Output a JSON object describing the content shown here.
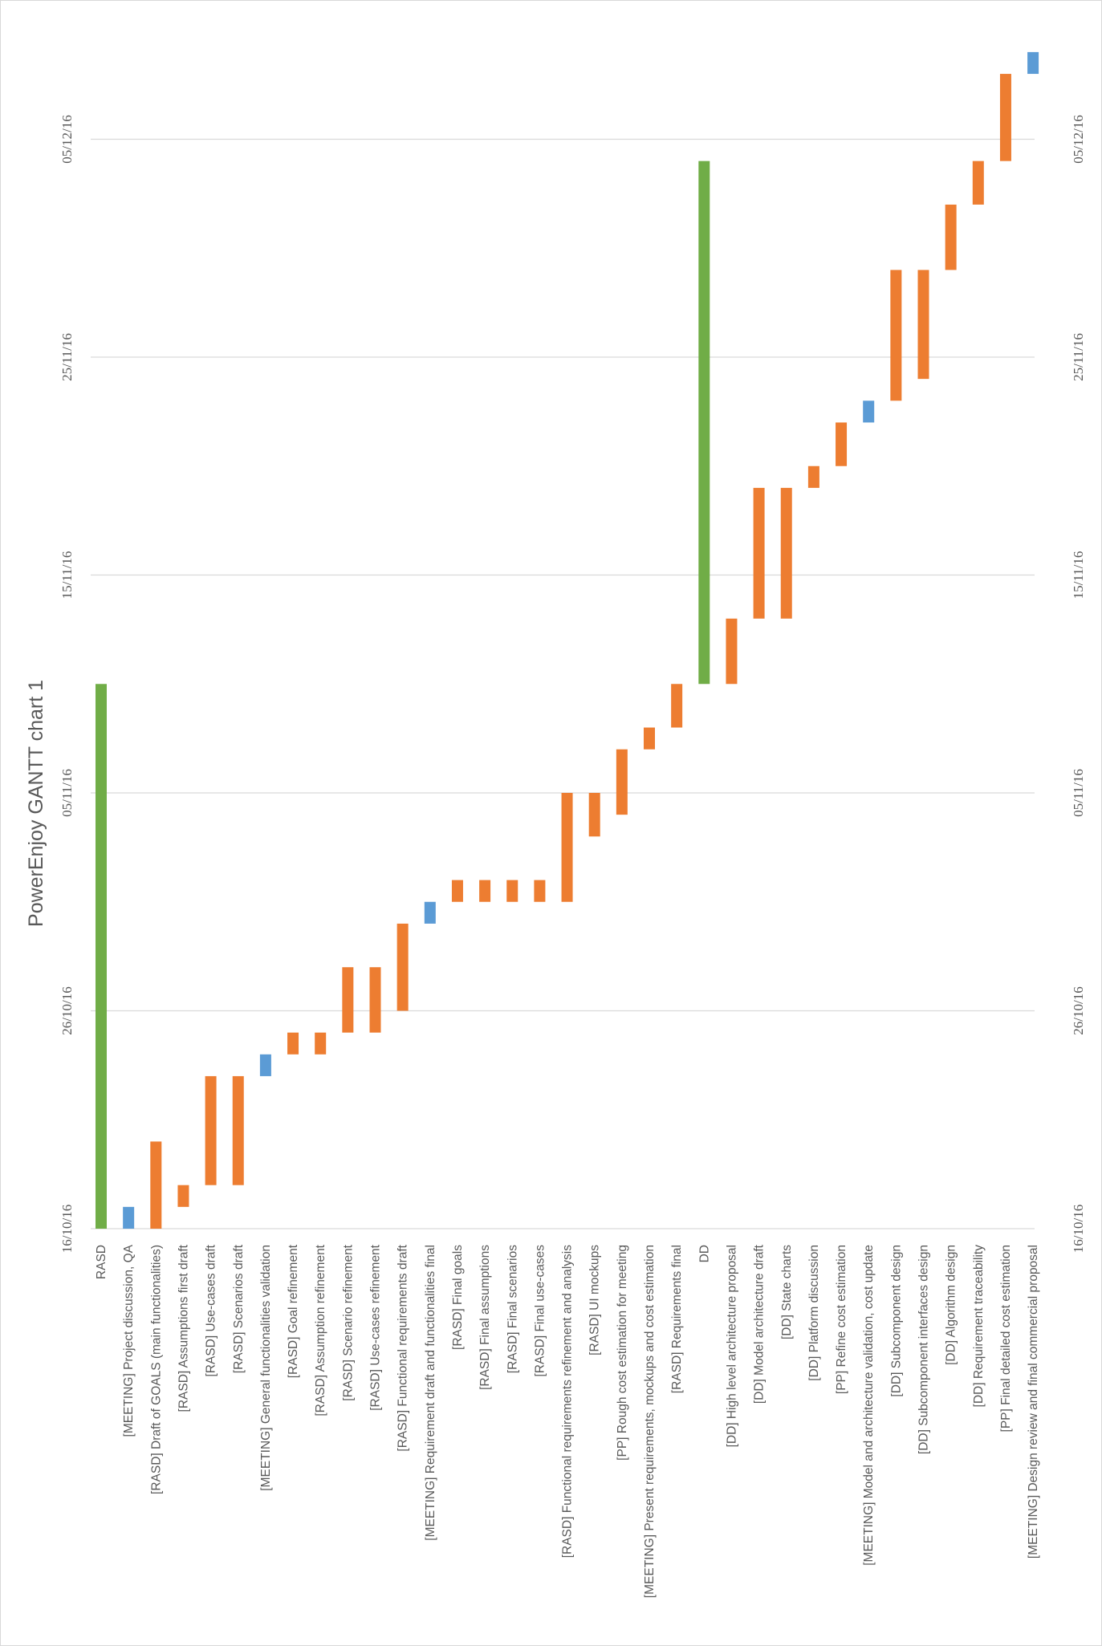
{
  "chart_data": {
    "type": "bar",
    "subtype": "gantt",
    "title": "PowerEnjoy GANTT chart 1",
    "date_ticks": [
      "16/10/16",
      "26/10/16",
      "05/11/16",
      "15/11/16",
      "25/11/16",
      "05/12/16"
    ],
    "date_range": [
      "2016-10-16",
      "2016-12-08"
    ],
    "colors": {
      "phase": "#70ad47",
      "task": "#ed7d31",
      "meeting": "#5b9bd5",
      "grid": "#d9d9d9",
      "text": "#595959"
    },
    "tasks": [
      {
        "name": "RASD",
        "start": "2016-10-16",
        "end": "2016-11-10",
        "kind": "phase"
      },
      {
        "name": "[MEETING] Project discussion, QA",
        "start": "2016-10-16",
        "end": "2016-10-17",
        "kind": "meeting"
      },
      {
        "name": "[RASD] Draft of GOALS (main functionalities)",
        "start": "2016-10-16",
        "end": "2016-10-20",
        "kind": "task"
      },
      {
        "name": "[RASD] Assumptions first draft",
        "start": "2016-10-17",
        "end": "2016-10-18",
        "kind": "task"
      },
      {
        "name": "[RASD] Use-cases draft",
        "start": "2016-10-18",
        "end": "2016-10-23",
        "kind": "task"
      },
      {
        "name": "[RASD] Scenarios draft",
        "start": "2016-10-18",
        "end": "2016-10-23",
        "kind": "task"
      },
      {
        "name": "[MEETING] General functionalities validation",
        "start": "2016-10-23",
        "end": "2016-10-24",
        "kind": "meeting"
      },
      {
        "name": "[RASD] Goal refinement",
        "start": "2016-10-24",
        "end": "2016-10-25",
        "kind": "task"
      },
      {
        "name": "[RASD] Assumption refinement",
        "start": "2016-10-24",
        "end": "2016-10-25",
        "kind": "task"
      },
      {
        "name": "[RASD] Scenario refinement",
        "start": "2016-10-25",
        "end": "2016-10-28",
        "kind": "task"
      },
      {
        "name": "[RASD] Use-cases refinement",
        "start": "2016-10-25",
        "end": "2016-10-28",
        "kind": "task"
      },
      {
        "name": "[RASD] Functional requirements draft",
        "start": "2016-10-26",
        "end": "2016-10-30",
        "kind": "task"
      },
      {
        "name": "[MEETING] Requirement draft and functionalities final",
        "start": "2016-10-30",
        "end": "2016-10-31",
        "kind": "meeting"
      },
      {
        "name": "[RASD] Final goals",
        "start": "2016-10-31",
        "end": "2016-11-01",
        "kind": "task"
      },
      {
        "name": "[RASD] Final assumptions",
        "start": "2016-10-31",
        "end": "2016-11-01",
        "kind": "task"
      },
      {
        "name": "[RASD] Final scenarios",
        "start": "2016-10-31",
        "end": "2016-11-01",
        "kind": "task"
      },
      {
        "name": "[RASD] Final use-cases",
        "start": "2016-10-31",
        "end": "2016-11-01",
        "kind": "task"
      },
      {
        "name": "[RASD] Functional requirements refinement and analysis",
        "start": "2016-10-31",
        "end": "2016-11-05",
        "kind": "task"
      },
      {
        "name": "[RASD] UI mockups",
        "start": "2016-11-03",
        "end": "2016-11-05",
        "kind": "task"
      },
      {
        "name": "[PP] Rough cost estimation for meeting",
        "start": "2016-11-04",
        "end": "2016-11-07",
        "kind": "task"
      },
      {
        "name": "[MEETING] Present requirements, mockups and cost estimation",
        "start": "2016-11-07",
        "end": "2016-11-08",
        "kind": "task"
      },
      {
        "name": "[RASD] Requirements final",
        "start": "2016-11-08",
        "end": "2016-11-10",
        "kind": "task"
      },
      {
        "name": "DD",
        "start": "2016-11-10",
        "end": "2016-12-04",
        "kind": "phase"
      },
      {
        "name": "[DD] High level architecture proposal",
        "start": "2016-11-10",
        "end": "2016-11-13",
        "kind": "task"
      },
      {
        "name": "[DD] Model architecture draft",
        "start": "2016-11-13",
        "end": "2016-11-19",
        "kind": "task"
      },
      {
        "name": "[DD] State charts",
        "start": "2016-11-13",
        "end": "2016-11-19",
        "kind": "task"
      },
      {
        "name": "[DD] Platform discussion",
        "start": "2016-11-19",
        "end": "2016-11-20",
        "kind": "task"
      },
      {
        "name": "[PP] Refine cost estimation",
        "start": "2016-11-20",
        "end": "2016-11-22",
        "kind": "task"
      },
      {
        "name": "[MEETING] Model and architecture validation, cost update",
        "start": "2016-11-22",
        "end": "2016-11-23",
        "kind": "meeting"
      },
      {
        "name": "[DD] Subcomponent design",
        "start": "2016-11-23",
        "end": "2016-11-29",
        "kind": "task"
      },
      {
        "name": "[DD] Subcomponent interfaces design",
        "start": "2016-11-24",
        "end": "2016-11-29",
        "kind": "task"
      },
      {
        "name": "[DD] Algorithm design",
        "start": "2016-11-29",
        "end": "2016-12-02",
        "kind": "task"
      },
      {
        "name": "[DD] Requirement traceability",
        "start": "2016-12-02",
        "end": "2016-12-04",
        "kind": "task"
      },
      {
        "name": "[PP] Final detailed cost estimation",
        "start": "2016-12-04",
        "end": "2016-12-08",
        "kind": "task"
      },
      {
        "name": "[MEETING] Design review and final commercial proposal",
        "start": "2016-12-08",
        "end": "2016-12-09",
        "kind": "meeting"
      }
    ]
  }
}
